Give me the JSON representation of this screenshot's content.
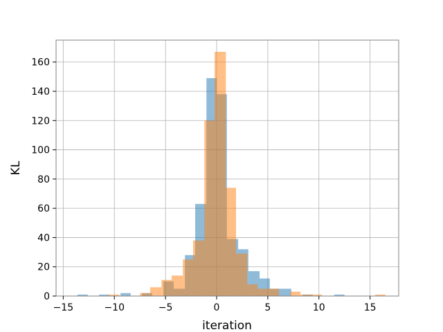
{
  "chart_data": {
    "type": "histogram",
    "title": "",
    "xlabel": "iteration",
    "ylabel": "KL",
    "xlim": [
      -15.7,
      17.8
    ],
    "ylim": [
      0,
      175
    ],
    "xticks": [
      -15,
      -10,
      -5,
      0,
      5,
      10,
      15
    ],
    "xtick_labels": [
      "−15",
      "−10",
      "−5",
      "0",
      "5",
      "10",
      "15"
    ],
    "yticks": [
      0,
      20,
      40,
      60,
      80,
      100,
      120,
      140,
      160
    ],
    "ytick_labels": [
      "0",
      "20",
      "40",
      "60",
      "80",
      "100",
      "120",
      "140",
      "160"
    ],
    "grid": true,
    "legend": "none",
    "series": [
      {
        "color": "#1f77b4",
        "alpha": 0.5,
        "bins": [
          {
            "x0": -13.6,
            "x1": -12.6,
            "value": 1
          },
          {
            "x0": -11.5,
            "x1": -10.5,
            "value": 1
          },
          {
            "x0": -9.4,
            "x1": -8.4,
            "value": 2
          },
          {
            "x0": -7.3,
            "x1": -6.3,
            "value": 2
          },
          {
            "x0": -5.2,
            "x1": -4.2,
            "value": 10
          },
          {
            "x0": -4.2,
            "x1": -3.1,
            "value": 5
          },
          {
            "x0": -3.1,
            "x1": -2.1,
            "value": 28
          },
          {
            "x0": -2.1,
            "x1": -1.0,
            "value": 63
          },
          {
            "x0": -1.0,
            "x1": 0.0,
            "value": 149
          },
          {
            "x0": 0.0,
            "x1": 1.0,
            "value": 138
          },
          {
            "x0": 1.0,
            "x1": 2.1,
            "value": 39
          },
          {
            "x0": 2.1,
            "x1": 3.1,
            "value": 32
          },
          {
            "x0": 3.1,
            "x1": 4.2,
            "value": 17
          },
          {
            "x0": 4.2,
            "x1": 5.2,
            "value": 12
          },
          {
            "x0": 5.2,
            "x1": 6.3,
            "value": 5
          },
          {
            "x0": 6.3,
            "x1": 7.3,
            "value": 5
          },
          {
            "x0": 8.4,
            "x1": 9.4,
            "value": 1
          },
          {
            "x0": 11.5,
            "x1": 12.5,
            "value": 1
          }
        ]
      },
      {
        "color": "#ff7f0e",
        "alpha": 0.5,
        "bins": [
          {
            "x0": -10.6,
            "x1": -9.5,
            "value": 1
          },
          {
            "x0": -7.5,
            "x1": -6.5,
            "value": 2
          },
          {
            "x0": -6.5,
            "x1": -5.4,
            "value": 6
          },
          {
            "x0": -5.4,
            "x1": -4.4,
            "value": 11
          },
          {
            "x0": -4.4,
            "x1": -3.3,
            "value": 14
          },
          {
            "x0": -3.3,
            "x1": -2.3,
            "value": 25
          },
          {
            "x0": -2.3,
            "x1": -1.2,
            "value": 38
          },
          {
            "x0": -1.2,
            "x1": -0.2,
            "value": 120
          },
          {
            "x0": -0.2,
            "x1": 0.9,
            "value": 167
          },
          {
            "x0": 0.9,
            "x1": 1.9,
            "value": 74
          },
          {
            "x0": 1.9,
            "x1": 3.0,
            "value": 29
          },
          {
            "x0": 3.0,
            "x1": 4.0,
            "value": 8
          },
          {
            "x0": 4.0,
            "x1": 5.1,
            "value": 5
          },
          {
            "x0": 5.1,
            "x1": 6.1,
            "value": 5
          },
          {
            "x0": 7.2,
            "x1": 8.2,
            "value": 3
          },
          {
            "x0": 8.2,
            "x1": 9.3,
            "value": 1
          },
          {
            "x0": 9.3,
            "x1": 10.3,
            "value": 1
          },
          {
            "x0": 15.5,
            "x1": 16.5,
            "value": 1
          }
        ]
      }
    ]
  }
}
